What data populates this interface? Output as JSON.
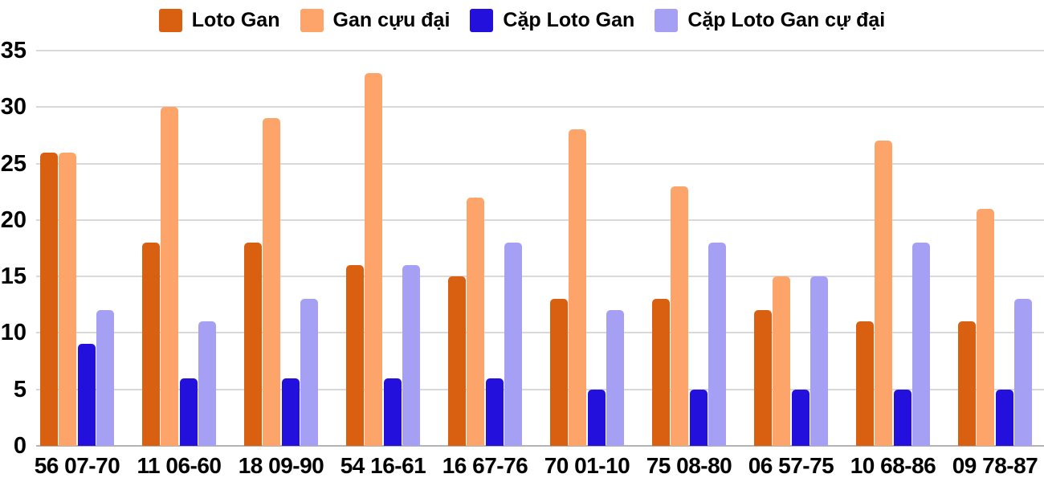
{
  "chart_data": {
    "type": "bar",
    "title": "",
    "xlabel": "",
    "ylabel": "",
    "categories": [
      "56 07-70",
      "11 06-60",
      "18 09-90",
      "54 16-61",
      "16 67-76",
      "70 01-10",
      "75 08-80",
      "06 57-75",
      "10 68-86",
      "09 78-87"
    ],
    "series": [
      {
        "name": "Loto Gan",
        "color": "#d95f11",
        "values": [
          26,
          18,
          18,
          16,
          15,
          13,
          13,
          12,
          11,
          11
        ]
      },
      {
        "name": "Gan cựu đại",
        "color": "#fda46b",
        "values": [
          26,
          30,
          29,
          33,
          22,
          28,
          23,
          15,
          27,
          21
        ]
      },
      {
        "name": "Cặp Loto Gan",
        "color": "#2310dd",
        "values": [
          9,
          6,
          6,
          6,
          6,
          5,
          5,
          5,
          5,
          5
        ]
      },
      {
        "name": "Cặp Loto Gan cự đại",
        "color": "#a5a0f3",
        "values": [
          12,
          11,
          13,
          16,
          18,
          12,
          18,
          15,
          18,
          13
        ]
      }
    ],
    "ylim": [
      0,
      35
    ],
    "yticks": [
      0,
      5,
      10,
      15,
      20,
      25,
      30,
      35
    ],
    "grid": "horizontal",
    "legend_position": "top",
    "background_color": "#ffffff",
    "grid_color": "#d9d9d9",
    "baseline_color": "#b3b3b3",
    "text_color": "#000000"
  }
}
